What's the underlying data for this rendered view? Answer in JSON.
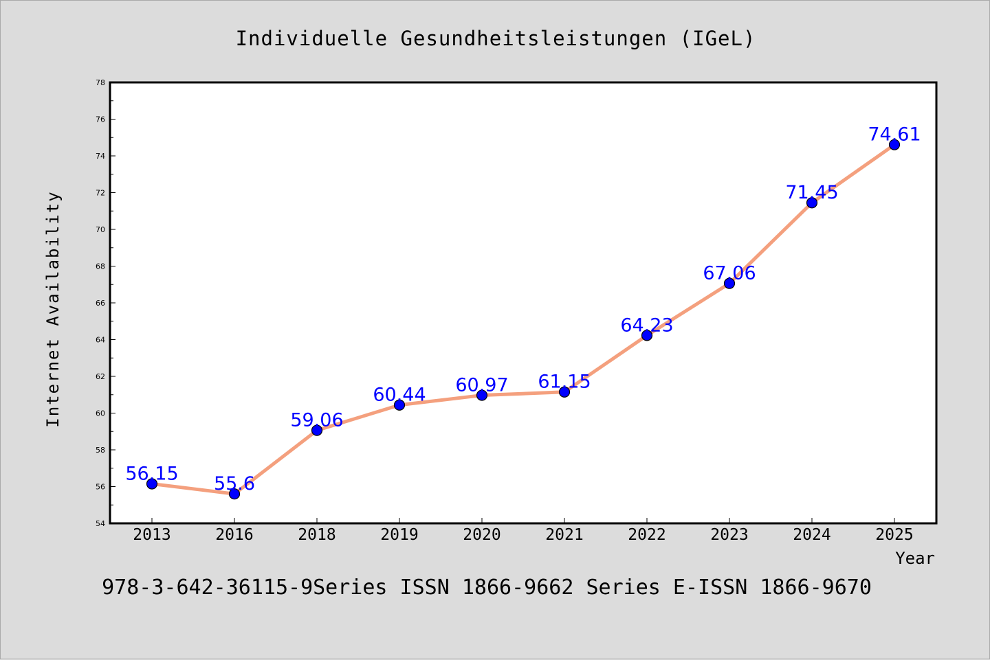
{
  "chart_data": {
    "type": "line",
    "title": "Individuelle Gesundheitsleistungen (IGeL)",
    "xlabel": "Year",
    "ylabel": "Internet Availability",
    "categories": [
      "2013",
      "2016",
      "2018",
      "2019",
      "2020",
      "2021",
      "2022",
      "2023",
      "2024",
      "2025"
    ],
    "series": [
      {
        "values": [
          56.15,
          55.6,
          59.06,
          60.44,
          60.97,
          61.15,
          64.23,
          67.06,
          71.45,
          74.61
        ],
        "labels": [
          "56.15",
          "55.6",
          "59.06",
          "60.44",
          "60.97",
          "61.15",
          "64.23",
          "67.06",
          "71.45",
          "74.61"
        ]
      }
    ],
    "ylim": [
      54,
      78
    ],
    "yticks": [
      "54",
      "56",
      "58",
      "60",
      "62",
      "64",
      "66",
      "68",
      "70",
      "72",
      "74",
      "76",
      "78"
    ],
    "grid": false,
    "legend": "none",
    "footer": "978-3-642-36115-9Series ISSN 1866-9662 Series E-ISSN 1866-9670",
    "colors": {
      "line": "#f4a07e",
      "marker": "#0000ff",
      "label": "#0000ff",
      "background": "#dcdcdc",
      "plot_background": "#ffffff"
    }
  }
}
